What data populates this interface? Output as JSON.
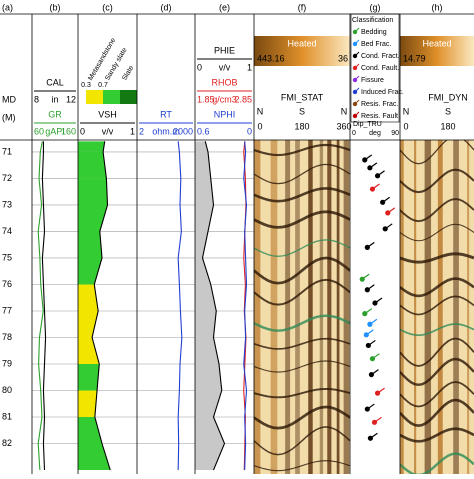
{
  "chart_data": [
    {
      "type": "depth",
      "title": "(a)",
      "label": "MD",
      "unit": "(M)",
      "ylim": [
        70.55,
        83.15
      ],
      "yticks": [
        71,
        72,
        73,
        74,
        75,
        76,
        77,
        78,
        79,
        80,
        81,
        82
      ],
      "grid": true,
      "depths": [
        70.6,
        71,
        72,
        73,
        74,
        75,
        76,
        77,
        78,
        79,
        80,
        81,
        82,
        83
      ]
    },
    {
      "type": "line",
      "title": "(b)",
      "curves": [
        {
          "name": "CAL",
          "unit": "in",
          "xlim": [
            8,
            12
          ],
          "color": "#000000",
          "values": [
            8.9,
            8.9,
            8.8,
            8.9,
            9.0,
            8.8,
            8.9,
            9.0,
            9.1,
            9.0,
            8.9,
            9.0,
            8.9,
            9.0
          ]
        },
        {
          "name": "GR",
          "unit": "gAPI",
          "xlim": [
            60,
            160
          ],
          "color": "#2ca02c",
          "values": [
            80,
            75,
            72,
            78,
            70,
            74,
            76,
            82,
            73,
            71,
            76,
            79,
            70,
            74
          ]
        }
      ]
    },
    {
      "type": "litho",
      "title": "(c)",
      "classes": [
        {
          "name": "Metasandstone",
          "color": "#f2e600"
        },
        {
          "name": "Sandy slate",
          "color": "#33cc33"
        },
        {
          "name": "Slate",
          "color": "#137a13"
        }
      ],
      "cutoffs": [
        0.3,
        0.7
      ],
      "curves": [
        {
          "name": "VSH",
          "unit": "v/v",
          "xlim": [
            0,
            1
          ],
          "color": "#000000",
          "values": [
            0.45,
            0.42,
            0.48,
            0.5,
            0.36,
            0.4,
            0.26,
            0.33,
            0.22,
            0.35,
            0.31,
            0.27,
            0.4,
            0.55
          ]
        }
      ]
    },
    {
      "type": "line",
      "title": "(d)",
      "curves": [
        {
          "name": "RT",
          "unit": "ohm.m",
          "xlim": [
            2,
            2000
          ],
          "log": true,
          "color": "#1f3fd0",
          "values": [
            300,
            350,
            420,
            380,
            450,
            300,
            350,
            400,
            480,
            380,
            350,
            300,
            320,
            300
          ]
        }
      ]
    },
    {
      "type": "line",
      "title": "(e)",
      "curves": [
        {
          "name": "PHIE",
          "unit": "v/v",
          "xlim": [
            0,
            1
          ],
          "color": "#000000",
          "fill": "#c8c8c8",
          "values": [
            0.15,
            0.2,
            0.25,
            0.3,
            0.2,
            0.1,
            0.25,
            0.35,
            0.3,
            0.4,
            0.45,
            0.3,
            0.5,
            0.3
          ]
        },
        {
          "name": "RHOB",
          "unit": "g/cm3",
          "xlim": [
            1.85,
            2.85
          ],
          "color": "#e02020",
          "values": [
            2.72,
            2.7,
            2.73,
            2.74,
            2.72,
            2.7,
            2.73,
            2.71,
            2.74,
            2.72,
            2.7,
            2.73,
            2.72,
            2.71
          ]
        },
        {
          "name": "NPHI",
          "unit": "",
          "xlim": [
            0.6,
            0
          ],
          "color": "#1f3fd0",
          "values": [
            0.08,
            0.07,
            0.09,
            0.06,
            0.08,
            0.07,
            0.06,
            0.08,
            0.07,
            0.09,
            0.06,
            0.08,
            0.07,
            0.08
          ]
        }
      ]
    },
    {
      "type": "image",
      "title": "(f)",
      "label": "FMI_STAT",
      "colorbar": {
        "label": "Heated",
        "labels": [
          "443.16",
          "36"
        ]
      },
      "azimuth": [
        "N",
        "S",
        "N"
      ],
      "xticks": [
        0,
        180,
        360
      ],
      "xlim": [
        0,
        360
      ]
    },
    {
      "type": "tadpole",
      "title": "(g)",
      "legend_title": "Classification",
      "legend": [
        {
          "name": "Bedding",
          "color": "#2ca02c"
        },
        {
          "name": "Bed Frac.",
          "color": "#1e90ff"
        },
        {
          "name": "Cond. Fract.",
          "color": "#000000"
        },
        {
          "name": "Cond. Fault.",
          "color": "#e02020"
        },
        {
          "name": "Fissure",
          "color": "#8a2be2"
        },
        {
          "name": "Induced Frac.",
          "color": "#1f3fd0"
        },
        {
          "name": "Resis. Frac.",
          "color": "#8b4513"
        },
        {
          "name": "Resis. Fault",
          "color": "#c00000"
        }
      ],
      "xlabel": "Dip_TRU",
      "unit": "deg",
      "xlim": [
        0,
        90
      ],
      "depths": [
        71.3,
        71.6,
        71.9,
        72.4,
        72.9,
        73.3,
        73.9,
        74.6,
        75.8,
        76.2,
        76.7,
        77.1,
        77.5,
        77.9,
        78.3,
        78.8,
        79.4,
        80.1,
        80.7,
        81.2,
        81.8
      ],
      "dips": [
        25,
        35,
        50,
        40,
        60,
        70,
        65,
        30,
        20,
        30,
        45,
        25,
        35,
        28,
        32,
        40,
        38,
        50,
        30,
        44,
        36
      ],
      "classes": [
        2,
        2,
        2,
        3,
        2,
        3,
        2,
        2,
        0,
        2,
        2,
        0,
        1,
        1,
        2,
        0,
        2,
        3,
        2,
        3,
        2
      ]
    },
    {
      "type": "image",
      "title": "(h)",
      "label": "FMI_DYN",
      "colorbar": {
        "label": "Heated",
        "labels": [
          "14.79"
        ]
      },
      "azimuth": [
        "N",
        "S"
      ],
      "xticks": [
        0,
        180
      ],
      "xlim": [
        0,
        360
      ]
    }
  ]
}
